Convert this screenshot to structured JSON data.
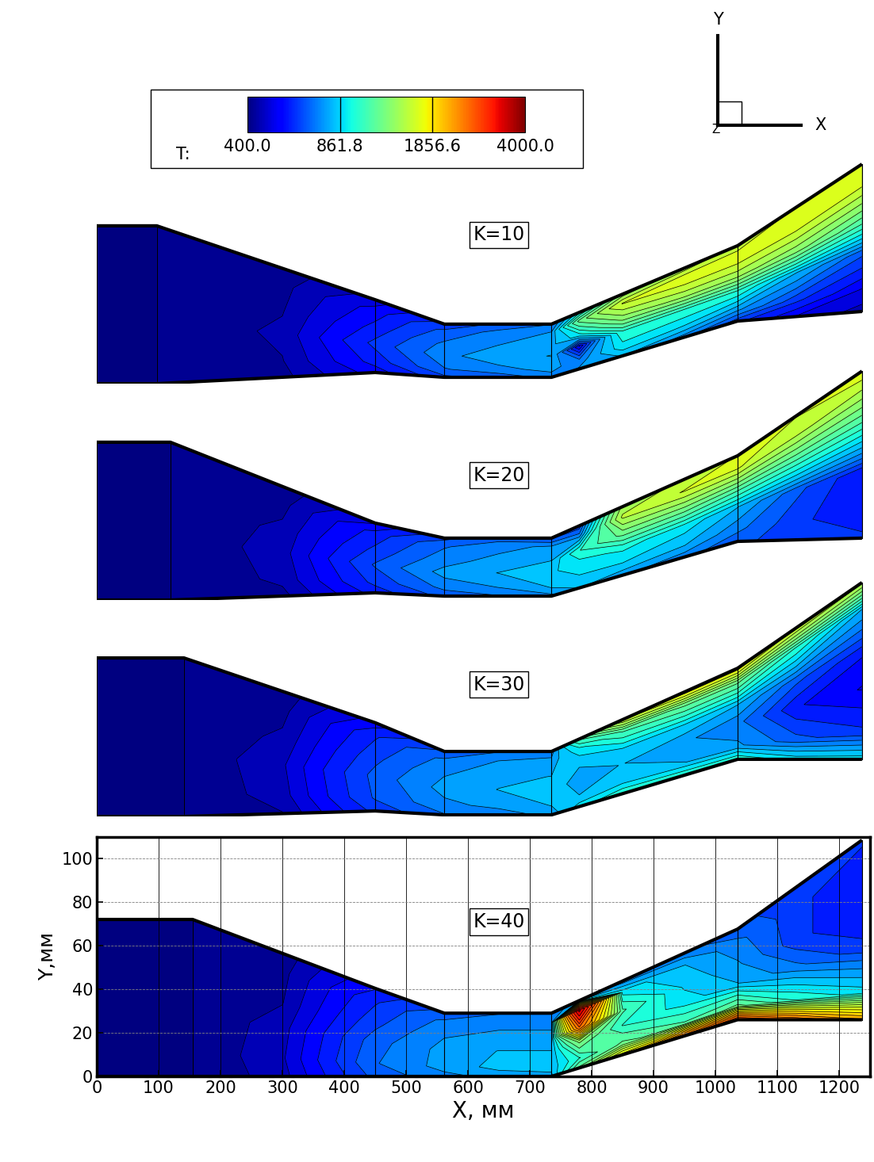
{
  "chart_data": {
    "type": "contour",
    "x_label": "X, мм",
    "y_label": "Y,мм",
    "xlim": [
      0,
      1250
    ],
    "ylim": [
      0,
      110
    ],
    "xticks": [
      0,
      100,
      200,
      300,
      400,
      500,
      600,
      700,
      800,
      900,
      1000,
      1100,
      1200
    ],
    "yticks": [
      0,
      20,
      40,
      60,
      80,
      100
    ],
    "grid": true,
    "axes_triad": [
      "X",
      "Y",
      "Z"
    ],
    "colorbar": {
      "label": "T:",
      "range": [
        400.0,
        4000.0
      ],
      "ticks": [
        400.0,
        861.8,
        1856.6,
        4000.0
      ],
      "log": true
    },
    "panels": [
      {
        "label": "K=10",
        "tick_labels": false,
        "upper": [
          [
            0,
            72.4
          ],
          [
            97,
            72.4
          ],
          [
            450,
            38.5
          ],
          [
            562,
            27.3
          ],
          [
            735,
            27.3
          ],
          [
            1036,
            63.3
          ],
          [
            1237,
            100.7
          ]
        ],
        "lower": [
          [
            0,
            0
          ],
          [
            97,
            0
          ],
          [
            450,
            5.1
          ],
          [
            562,
            2.9
          ],
          [
            735,
            2.9
          ],
          [
            1036,
            28.7
          ],
          [
            1237,
            33.1
          ]
        ],
        "stations": [
          0,
          97,
          300,
          450,
          562,
          650,
          735,
          780,
          850,
          950,
          1036,
          1130,
          1237
        ],
        "fractions": [
          0,
          0.15,
          0.4,
          0.6,
          0.85,
          1
        ],
        "T": [
          [
            400,
            400,
            400,
            400,
            400,
            400
          ],
          [
            400,
            400,
            400,
            400,
            400,
            400
          ],
          [
            420,
            430,
            440,
            430,
            420,
            410
          ],
          [
            520,
            560,
            600,
            560,
            520,
            480
          ],
          [
            620,
            680,
            720,
            700,
            650,
            600
          ],
          [
            650,
            720,
            780,
            740,
            700,
            640
          ],
          [
            700,
            760,
            800,
            780,
            740,
            680
          ],
          [
            750,
            700,
            500,
            900,
            1200,
            900
          ],
          [
            800,
            900,
            1000,
            1300,
            1600,
            1300
          ],
          [
            700,
            850,
            1000,
            1400,
            1700,
            1400
          ],
          [
            600,
            750,
            1000,
            1400,
            1700,
            1500
          ],
          [
            500,
            600,
            800,
            1300,
            1700,
            1600
          ],
          [
            450,
            500,
            650,
            1100,
            1600,
            1700
          ]
        ]
      },
      {
        "label": "K=20",
        "tick_labels": false,
        "upper": [
          [
            0,
            72.4
          ],
          [
            119,
            72.4
          ],
          [
            450,
            35.3
          ],
          [
            562,
            28.4
          ],
          [
            735,
            28.4
          ],
          [
            1036,
            66.2
          ],
          [
            1237,
            105
          ]
        ],
        "lower": [
          [
            0,
            0
          ],
          [
            119,
            0
          ],
          [
            450,
            3.3
          ],
          [
            562,
            1.8
          ],
          [
            735,
            1.8
          ],
          [
            1036,
            26.9
          ],
          [
            1237,
            28.4
          ]
        ],
        "stations": [
          0,
          119,
          300,
          450,
          562,
          650,
          735,
          780,
          850,
          950,
          1036,
          1130,
          1237
        ],
        "fractions": [
          0,
          0.15,
          0.4,
          0.6,
          0.85,
          1
        ],
        "T": [
          [
            400,
            400,
            400,
            400,
            400,
            400
          ],
          [
            400,
            400,
            400,
            400,
            400,
            400
          ],
          [
            420,
            440,
            450,
            440,
            420,
            410
          ],
          [
            560,
            600,
            640,
            600,
            560,
            500
          ],
          [
            650,
            700,
            760,
            720,
            680,
            620
          ],
          [
            680,
            740,
            800,
            760,
            720,
            660
          ],
          [
            720,
            800,
            850,
            800,
            750,
            620
          ],
          [
            800,
            850,
            900,
            1000,
            700,
            600
          ],
          [
            750,
            850,
            950,
            1200,
            1500,
            1400
          ],
          [
            700,
            800,
            900,
            1200,
            1600,
            1500
          ],
          [
            650,
            700,
            800,
            1100,
            1600,
            1600
          ],
          [
            600,
            600,
            650,
            1000,
            1500,
            1600
          ],
          [
            600,
            550,
            550,
            900,
            1400,
            1700
          ]
        ]
      },
      {
        "label": "K=30",
        "tick_labels": false,
        "upper": [
          [
            0,
            72.7
          ],
          [
            141,
            72.7
          ],
          [
            450,
            43
          ],
          [
            562,
            29.8
          ],
          [
            735,
            29.8
          ],
          [
            1036,
            68
          ],
          [
            1237,
            107.3
          ]
        ],
        "lower": [
          [
            0,
            0
          ],
          [
            141,
            0
          ],
          [
            450,
            2.5
          ],
          [
            562,
            0.7
          ],
          [
            735,
            0.7
          ],
          [
            1036,
            26.2
          ],
          [
            1237,
            26.2
          ]
        ],
        "stations": [
          0,
          141,
          300,
          450,
          562,
          650,
          735,
          780,
          850,
          950,
          1036,
          1130,
          1237
        ],
        "fractions": [
          0,
          0.15,
          0.4,
          0.6,
          0.85,
          1
        ],
        "T": [
          [
            400,
            400,
            400,
            400,
            400,
            400
          ],
          [
            400,
            400,
            400,
            400,
            400,
            400
          ],
          [
            430,
            450,
            460,
            440,
            420,
            410
          ],
          [
            600,
            640,
            650,
            620,
            580,
            520
          ],
          [
            680,
            720,
            760,
            740,
            700,
            640
          ],
          [
            700,
            760,
            800,
            780,
            740,
            680
          ],
          [
            760,
            800,
            820,
            800,
            760,
            700
          ],
          [
            900,
            800,
            780,
            800,
            900,
            1100
          ],
          [
            1000,
            850,
            800,
            850,
            1100,
            1600
          ],
          [
            1000,
            800,
            750,
            850,
            1200,
            1800
          ],
          [
            1000,
            750,
            700,
            800,
            1200,
            1800
          ],
          [
            900,
            650,
            550,
            650,
            1000,
            1600
          ],
          [
            900,
            600,
            500,
            550,
            800,
            1500
          ]
        ]
      },
      {
        "label": "K=40",
        "upper": [
          [
            0,
            72
          ],
          [
            155,
            72
          ],
          [
            450,
            40.4
          ],
          [
            562,
            29
          ],
          [
            735,
            29
          ],
          [
            1036,
            67.6
          ],
          [
            1237,
            108.4
          ]
        ],
        "lower": [
          [
            0,
            0
          ],
          [
            155,
            0
          ],
          [
            450,
            0
          ],
          [
            562,
            0
          ],
          [
            735,
            0
          ],
          [
            1036,
            26
          ],
          [
            1237,
            26
          ]
        ],
        "stations": [
          0,
          155,
          300,
          450,
          562,
          650,
          735,
          780,
          850,
          950,
          1036,
          1130,
          1237
        ],
        "fractions": [
          0,
          0.15,
          0.4,
          0.6,
          0.85,
          1
        ],
        "T": [
          [
            400,
            400,
            400,
            400,
            400,
            400
          ],
          [
            400,
            400,
            400,
            400,
            400,
            400
          ],
          [
            450,
            460,
            450,
            430,
            420,
            410
          ],
          [
            650,
            680,
            660,
            620,
            580,
            540
          ],
          [
            720,
            760,
            760,
            740,
            700,
            650
          ],
          [
            760,
            820,
            800,
            760,
            720,
            680
          ],
          [
            780,
            820,
            800,
            760,
            720,
            680
          ],
          [
            1200,
            1000,
            1300,
            2500,
            3500,
            800
          ],
          [
            1800,
            1200,
            1000,
            1100,
            900,
            700
          ],
          [
            2500,
            1100,
            900,
            850,
            800,
            700
          ],
          [
            2800,
            1200,
            800,
            750,
            700,
            650
          ],
          [
            2500,
            1000,
            700,
            600,
            600,
            600
          ],
          [
            2200,
            900,
            600,
            550,
            550,
            600
          ]
        ]
      }
    ]
  }
}
